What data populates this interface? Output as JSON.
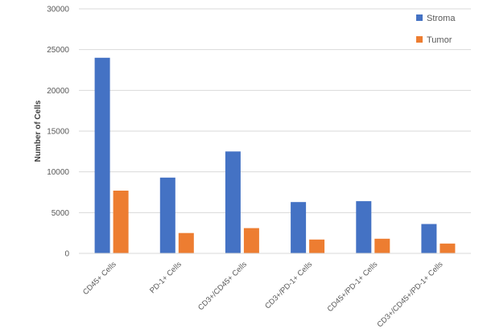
{
  "chart_data": {
    "type": "bar",
    "title": "",
    "xlabel": "",
    "ylabel": "Number of Cells",
    "ylim": [
      0,
      30000
    ],
    "yticks": [
      0,
      5000,
      10000,
      15000,
      20000,
      25000,
      30000
    ],
    "grid": true,
    "legend_position": "top-right",
    "categories": [
      "CD45+ Cells",
      "PD-1+ Cells",
      "CD3+/CD45+ Cells",
      "CD3+/PD-1+ Cells",
      "CD45+/PD-1+ Cells",
      "CD3+/CD45+/PD-1+ Cells"
    ],
    "series": [
      {
        "name": "Stroma",
        "color": "#4472c4",
        "values": [
          24000,
          9300,
          12500,
          6300,
          6400,
          3600
        ]
      },
      {
        "name": "Tumor",
        "color": "#ed7d31",
        "values": [
          7700,
          2500,
          3100,
          1700,
          1800,
          1200
        ]
      }
    ]
  }
}
